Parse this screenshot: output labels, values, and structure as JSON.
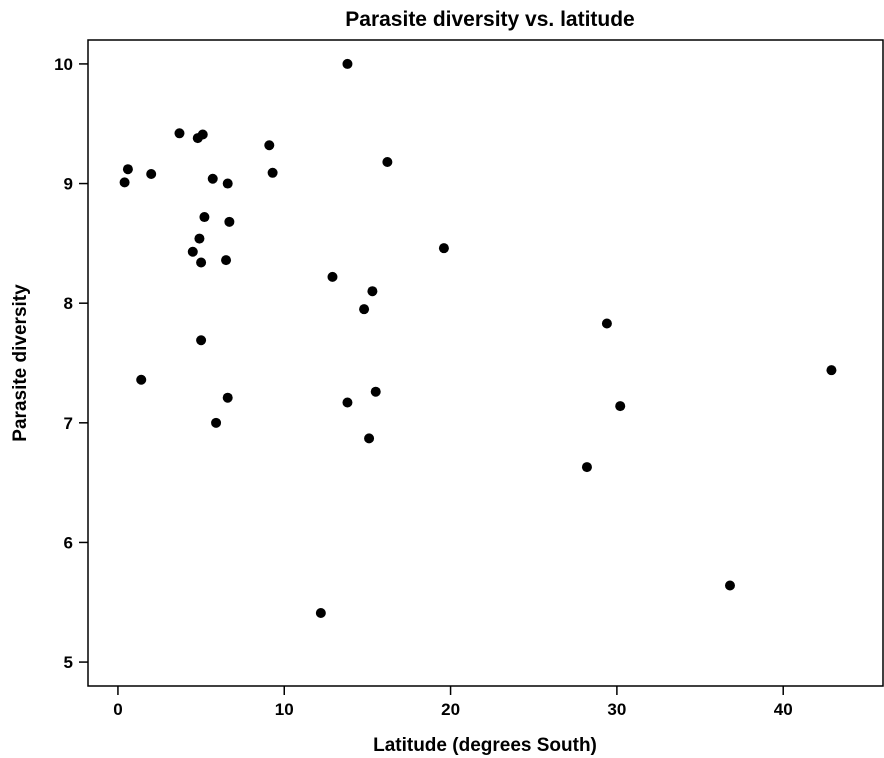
{
  "chart_data": {
    "type": "scatter",
    "title": "Parasite diversity vs. latitude",
    "xlabel": "Latitude (degrees South)",
    "ylabel": "Parasite diversity",
    "xlim": [
      -1.8,
      46
    ],
    "ylim": [
      4.8,
      10.2
    ],
    "xticks": [
      0,
      10,
      20,
      30,
      40
    ],
    "yticks": [
      5,
      6,
      7,
      8,
      9,
      10
    ],
    "grid": false,
    "legend": "none",
    "colors": {
      "marker": "#000000",
      "axis": "#000000",
      "background": "#ffffff"
    },
    "points": [
      {
        "x": 13.8,
        "y": 10.0
      },
      {
        "x": 3.7,
        "y": 9.42
      },
      {
        "x": 4.8,
        "y": 9.38
      },
      {
        "x": 5.1,
        "y": 9.41
      },
      {
        "x": 9.1,
        "y": 9.32
      },
      {
        "x": 16.2,
        "y": 9.18
      },
      {
        "x": 0.6,
        "y": 9.12
      },
      {
        "x": 2.0,
        "y": 9.08
      },
      {
        "x": 9.3,
        "y": 9.09
      },
      {
        "x": 0.4,
        "y": 9.01
      },
      {
        "x": 5.7,
        "y": 9.04
      },
      {
        "x": 6.6,
        "y": 9.0
      },
      {
        "x": 5.2,
        "y": 8.72
      },
      {
        "x": 6.7,
        "y": 8.68
      },
      {
        "x": 4.9,
        "y": 8.54
      },
      {
        "x": 4.5,
        "y": 8.43
      },
      {
        "x": 19.6,
        "y": 8.46
      },
      {
        "x": 5.0,
        "y": 8.34
      },
      {
        "x": 6.5,
        "y": 8.36
      },
      {
        "x": 12.9,
        "y": 8.22
      },
      {
        "x": 15.3,
        "y": 8.1
      },
      {
        "x": 14.8,
        "y": 7.95
      },
      {
        "x": 29.4,
        "y": 7.83
      },
      {
        "x": 5.0,
        "y": 7.69
      },
      {
        "x": 42.9,
        "y": 7.44
      },
      {
        "x": 1.4,
        "y": 7.36
      },
      {
        "x": 15.5,
        "y": 7.26
      },
      {
        "x": 6.6,
        "y": 7.21
      },
      {
        "x": 13.8,
        "y": 7.17
      },
      {
        "x": 30.2,
        "y": 7.14
      },
      {
        "x": 5.9,
        "y": 7.0
      },
      {
        "x": 15.1,
        "y": 6.87
      },
      {
        "x": 28.2,
        "y": 6.63
      },
      {
        "x": 36.8,
        "y": 5.64
      },
      {
        "x": 12.2,
        "y": 5.41
      }
    ]
  }
}
